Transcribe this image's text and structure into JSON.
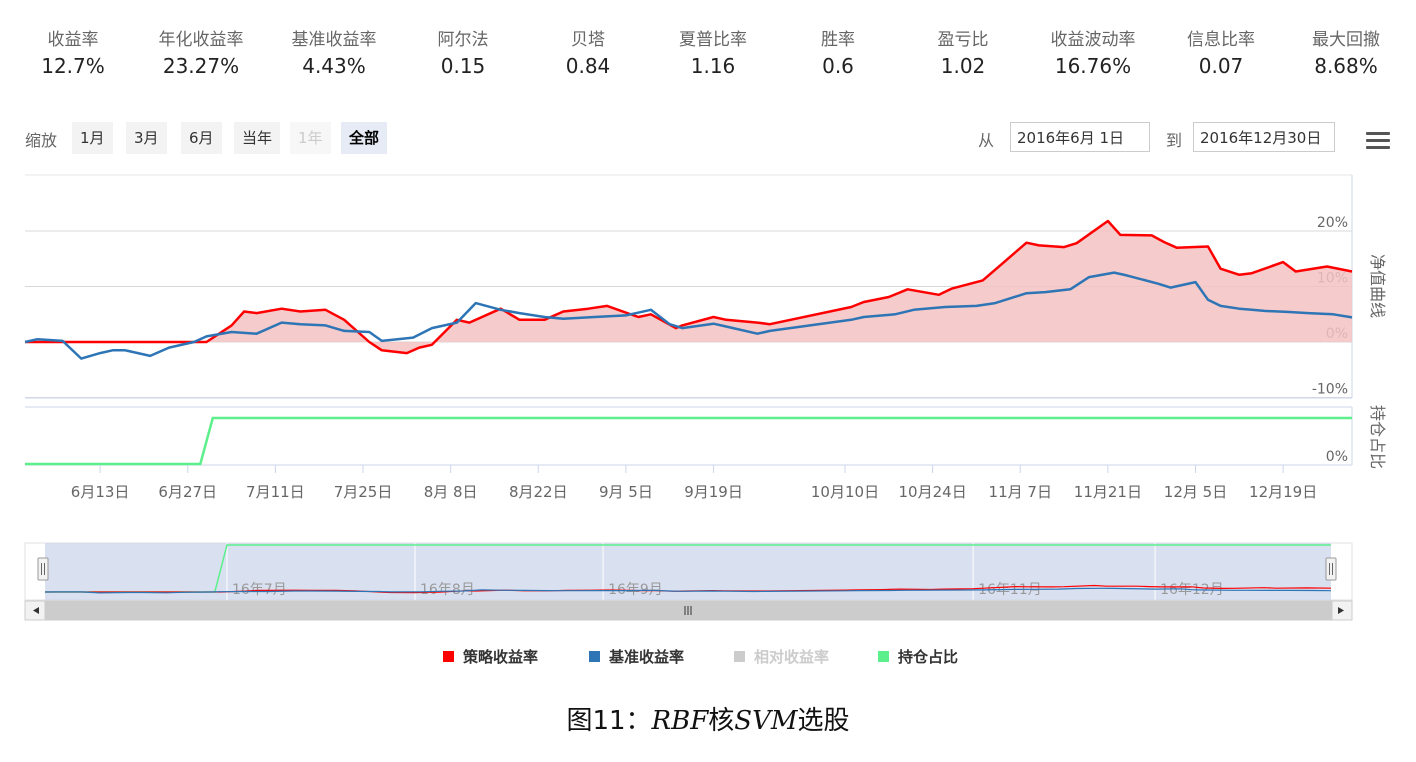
{
  "stats": [
    {
      "label": "收益率",
      "value": "12.7%"
    },
    {
      "label": "年化收益率",
      "value": "23.27%"
    },
    {
      "label": "基准收益率",
      "value": "4.43%"
    },
    {
      "label": "阿尔法",
      "value": "0.15"
    },
    {
      "label": "贝塔",
      "value": "0.84"
    },
    {
      "label": "夏普比率",
      "value": "1.16"
    },
    {
      "label": "胜率",
      "value": "0.6"
    },
    {
      "label": "盈亏比",
      "value": "1.02"
    },
    {
      "label": "收益波动率",
      "value": "16.76%"
    },
    {
      "label": "信息比率",
      "value": "0.07"
    },
    {
      "label": "最大回撤",
      "value": "8.68%"
    }
  ],
  "toolbar": {
    "zoom_label": "缩放",
    "zoom_buttons": [
      "1月",
      "3月",
      "6月",
      "当年",
      "1年",
      "全部"
    ],
    "from_label": "从",
    "from_value": "2016年6月 1日",
    "to_label": "到",
    "to_value": "2016年12月30日",
    "menu_icon": "hamburger-menu-icon"
  },
  "colors": {
    "strategy": "#ff0000",
    "benchmark": "#2e75b6",
    "relative": "#cccccc",
    "position": "#5cf08c",
    "area_fill": "#f4c2c2",
    "navigator_bg": "#ccd6eb"
  },
  "chart_data": {
    "type": "line",
    "x_tick_labels": [
      "6月13日",
      "6月27日",
      "7月11日",
      "7月25日",
      "8月 8日",
      "8月22日",
      "9月 5日",
      "9月19日",
      "10月10日",
      "10月24日",
      "11月 7日",
      "11月21日",
      "12月 5日",
      "12月19日"
    ],
    "x_range": [
      "2016-06-01",
      "2016-12-30"
    ],
    "upper_panel": {
      "axis_title": "净值曲线",
      "y_ticks": [
        "20%",
        "10%",
        "0%",
        "-10%"
      ],
      "ylim": [
        -10,
        22
      ],
      "series": [
        {
          "name": "策略收益率",
          "x": [
            "2016-06-01",
            "2016-06-30",
            "2016-07-04",
            "2016-07-06",
            "2016-07-08",
            "2016-07-12",
            "2016-07-15",
            "2016-07-19",
            "2016-07-22",
            "2016-07-26",
            "2016-07-28",
            "2016-08-01",
            "2016-08-03",
            "2016-08-05",
            "2016-08-09",
            "2016-08-11",
            "2016-08-16",
            "2016-08-19",
            "2016-08-23",
            "2016-08-26",
            "2016-08-30",
            "2016-09-02",
            "2016-09-07",
            "2016-09-09",
            "2016-09-13",
            "2016-09-14",
            "2016-09-19",
            "2016-09-21",
            "2016-09-26",
            "2016-09-28",
            "2016-10-11",
            "2016-10-13",
            "2016-10-17",
            "2016-10-20",
            "2016-10-25",
            "2016-10-27",
            "2016-11-01",
            "2016-11-04",
            "2016-11-08",
            "2016-11-10",
            "2016-11-14",
            "2016-11-16",
            "2016-11-21",
            "2016-11-23",
            "2016-11-28",
            "2016-11-30",
            "2016-12-02",
            "2016-12-07",
            "2016-12-09",
            "2016-12-12",
            "2016-12-14",
            "2016-12-19",
            "2016-12-21",
            "2016-12-26",
            "2016-12-30"
          ],
          "y": [
            0,
            0,
            3,
            5.5,
            5.2,
            6,
            5.5,
            5.8,
            4,
            0,
            -1.5,
            -2,
            -1,
            -0.5,
            4,
            3.5,
            6,
            4,
            4,
            5.5,
            6,
            6.5,
            4.5,
            5,
            2.5,
            3,
            4.5,
            4,
            3.5,
            3.2,
            6.3,
            7.2,
            8.1,
            9.5,
            8.5,
            9.6,
            11.1,
            14,
            17.9,
            17.4,
            17.1,
            17.8,
            21.8,
            19.3,
            19.2,
            18,
            17,
            17.2,
            13.2,
            12.1,
            12.4,
            14.4,
            12.7,
            13.6,
            12.7
          ]
        },
        {
          "name": "基准收益率",
          "x": [
            "2016-06-01",
            "2016-06-03",
            "2016-06-07",
            "2016-06-10",
            "2016-06-13",
            "2016-06-15",
            "2016-06-17",
            "2016-06-21",
            "2016-06-24",
            "2016-06-28",
            "2016-06-30",
            "2016-07-04",
            "2016-07-08",
            "2016-07-12",
            "2016-07-15",
            "2016-07-19",
            "2016-07-22",
            "2016-07-26",
            "2016-07-28",
            "2016-08-02",
            "2016-08-05",
            "2016-08-09",
            "2016-08-12",
            "2016-08-16",
            "2016-08-19",
            "2016-08-23",
            "2016-08-26",
            "2016-08-31",
            "2016-09-05",
            "2016-09-09",
            "2016-09-12",
            "2016-09-14",
            "2016-09-19",
            "2016-09-21",
            "2016-09-26",
            "2016-09-28",
            "2016-10-11",
            "2016-10-13",
            "2016-10-18",
            "2016-10-21",
            "2016-10-26",
            "2016-10-31",
            "2016-11-03",
            "2016-11-08",
            "2016-11-11",
            "2016-11-15",
            "2016-11-18",
            "2016-11-22",
            "2016-11-24",
            "2016-11-29",
            "2016-12-01",
            "2016-12-05",
            "2016-12-07",
            "2016-12-09",
            "2016-12-12",
            "2016-12-14",
            "2016-12-16",
            "2016-12-20",
            "2016-12-23",
            "2016-12-27",
            "2016-12-30"
          ],
          "y": [
            0,
            0.5,
            0.2,
            -3,
            -2,
            -1.5,
            -1.5,
            -2.5,
            -1,
            0,
            1,
            1.8,
            1.5,
            3.5,
            3.2,
            3,
            2,
            1.8,
            0.2,
            0.8,
            2.5,
            3.5,
            7,
            5.8,
            5.2,
            4.5,
            4.2,
            4.5,
            4.8,
            5.8,
            3.2,
            2.5,
            3.3,
            2.8,
            1.5,
            2,
            4,
            4.5,
            5,
            5.8,
            6.3,
            6.5,
            7,
            8.8,
            9,
            9.5,
            11.7,
            12.5,
            12,
            10.5,
            9.8,
            10.8,
            7.6,
            6.5,
            6,
            5.8,
            5.6,
            5.4,
            5.2,
            5,
            4.43
          ]
        },
        {
          "name": "相对收益率",
          "hidden": true
        }
      ]
    },
    "lower_panel": {
      "axis_title": "持仓占比",
      "y_ticks": [
        "0%"
      ],
      "series": [
        {
          "name": "持仓占比",
          "x": [
            "2016-06-01",
            "2016-06-29",
            "2016-07-01",
            "2016-12-30"
          ],
          "y": [
            0,
            0,
            100,
            100
          ]
        }
      ]
    },
    "navigator_labels": [
      "16年7月",
      "16年8月",
      "16年9月",
      "16年11月",
      "16年12月"
    ],
    "legend": [
      {
        "name": "策略收益率",
        "color": "#ff0000",
        "visible": true
      },
      {
        "name": "基准收益率",
        "color": "#2e75b6",
        "visible": true
      },
      {
        "name": "相对收益率",
        "color": "#cccccc",
        "visible": false
      },
      {
        "name": "持仓占比",
        "color": "#5cf08c",
        "visible": true
      }
    ],
    "grid": true,
    "legend_position": "bottom-center"
  },
  "caption": {
    "prefix": "图11：",
    "part1": "RBF",
    "mid": "核",
    "part2": "SVM",
    "suffix": "选股"
  }
}
